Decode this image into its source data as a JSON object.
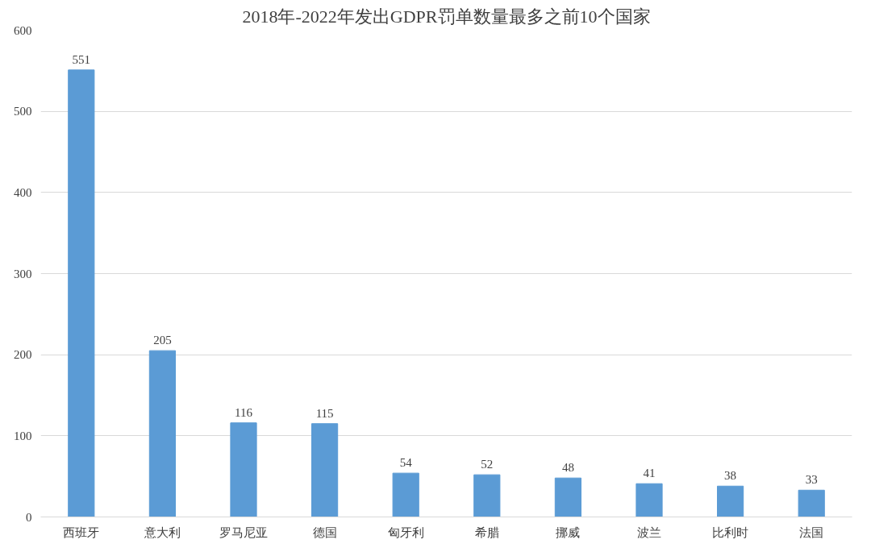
{
  "chart_data": {
    "type": "bar",
    "title": "2018年-2022年发出GDPR罚单数量最多之前10个国家",
    "categories": [
      "西班牙",
      "意大利",
      "罗马尼亚",
      "德国",
      "匈牙利",
      "希腊",
      "挪威",
      "波兰",
      "比利时",
      "法国"
    ],
    "values": [
      551,
      205,
      116,
      115,
      54,
      52,
      48,
      41,
      38,
      33
    ],
    "color": "#5b9bd5",
    "ylim": [
      0,
      600
    ],
    "yticks": [
      0,
      100,
      200,
      300,
      400,
      500,
      600
    ],
    "grid": "y",
    "data_labels": true
  }
}
